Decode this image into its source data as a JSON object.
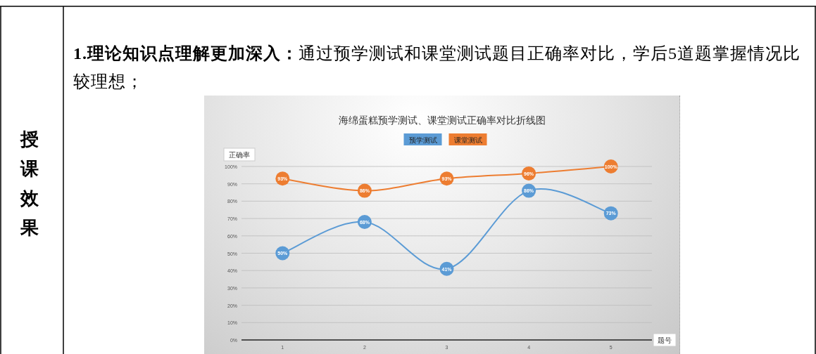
{
  "chart_data": {
    "type": "line",
    "title": "海绵蛋糕预学测试、课堂测试正确率对比折线图",
    "xlabel": "题号",
    "ylabel": "正确率",
    "categories": [
      "1",
      "2",
      "3",
      "4",
      "5"
    ],
    "series": [
      {
        "name": "预学测试",
        "color": "#5b9bd5",
        "values": [
          50,
          68,
          41,
          86,
          73
        ],
        "value_labels": [
          "50%",
          "68%",
          "41%",
          "86%",
          "73%"
        ]
      },
      {
        "name": "课堂测试",
        "color": "#ed7d31",
        "values": [
          93,
          86,
          93,
          96,
          100
        ],
        "value_labels": [
          "93%",
          "86%",
          "93%",
          "96%",
          "100%"
        ]
      }
    ],
    "ylim": [
      0,
      100
    ],
    "yticks": [
      {
        "value": 0,
        "label": "0%"
      },
      {
        "value": 10,
        "label": "10%"
      },
      {
        "value": 20,
        "label": "20%"
      },
      {
        "value": 30,
        "label": "30%"
      },
      {
        "value": 40,
        "label": "40%"
      },
      {
        "value": 50,
        "label": "50%"
      },
      {
        "value": 60,
        "label": "60%"
      },
      {
        "value": 70,
        "label": "70%"
      },
      {
        "value": 80,
        "label": "80%"
      },
      {
        "value": 90,
        "label": "90%"
      },
      {
        "value": 100,
        "label": "100%"
      }
    ],
    "grid": "y",
    "legend": "top",
    "marker": "circle",
    "line_style": "solid",
    "annotations": [
      "授课效果",
      "1.理论知识点理解更加深入：",
      "通过预学测试和课堂测试题目正确率对比，学后5道题掌握情况比较理想；"
    ]
  }
}
